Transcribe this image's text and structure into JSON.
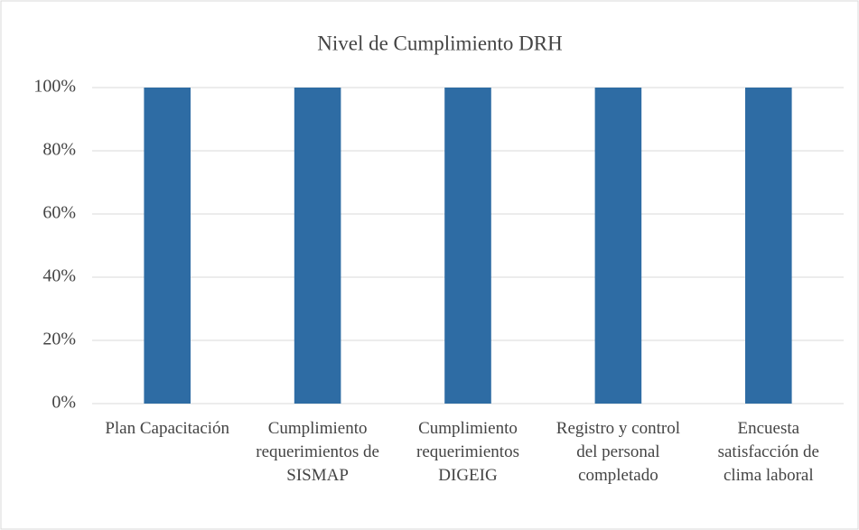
{
  "chart_data": {
    "type": "bar",
    "title": "Nivel de Cumplimiento DRH",
    "categories": [
      "Plan Capacitación",
      "Cumplimiento requerimientos de SISMAP",
      "Cumplimiento requerimientos DIGEIG",
      "Registro y control del personal completado",
      "Encuesta satisfacción de clima laboral"
    ],
    "values": [
      100,
      100,
      100,
      100,
      100
    ],
    "color": "#2e6ca4",
    "ylim": [
      0,
      100
    ],
    "yticks": [
      {
        "value": 0,
        "label": "0%"
      },
      {
        "value": 20,
        "label": "20%"
      },
      {
        "value": 40,
        "label": "40%"
      },
      {
        "value": 60,
        "label": "60%"
      },
      {
        "value": 80,
        "label": "80%"
      },
      {
        "value": 100,
        "label": "100%"
      }
    ],
    "grid": true
  }
}
